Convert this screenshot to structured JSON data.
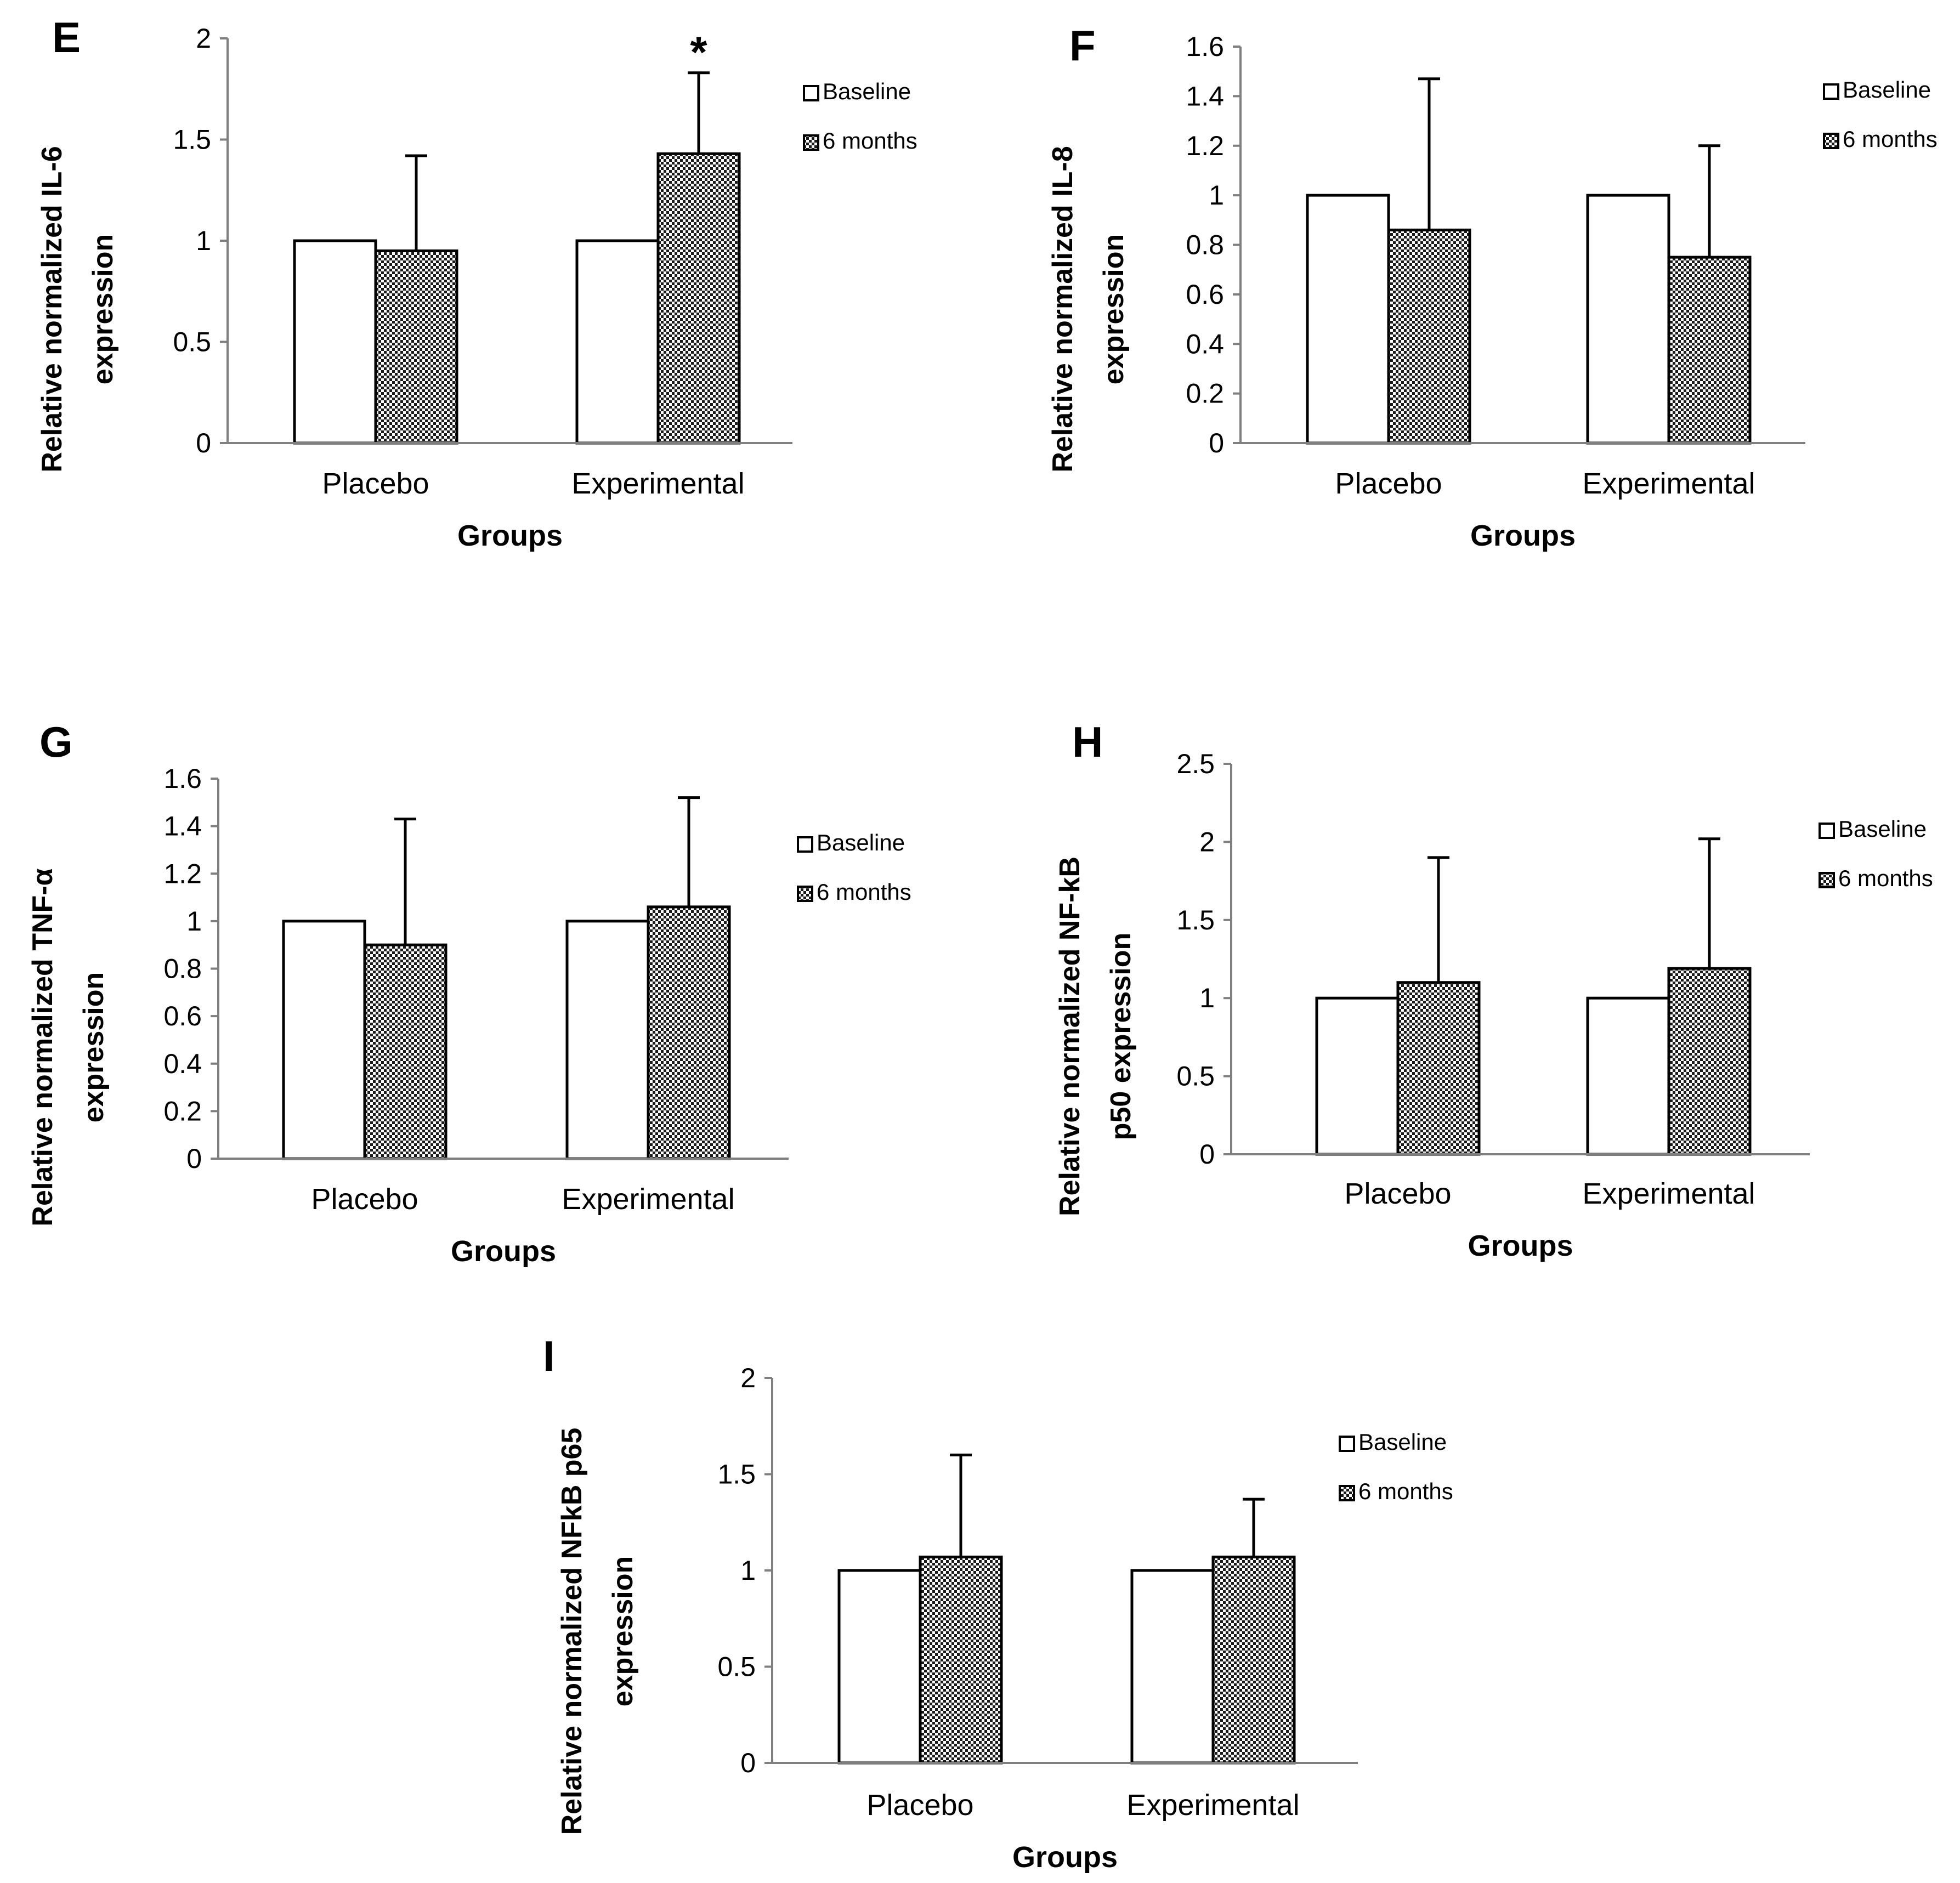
{
  "chart_data": [
    {
      "type": "bar",
      "panel": "E",
      "title": "",
      "xlabel": "Groups",
      "ylabel": [
        "Relative normalized IL-6",
        "expression"
      ],
      "categories": [
        "Placebo",
        "Experimental"
      ],
      "ylim": [
        0,
        2
      ],
      "yticks": [
        0,
        0.5,
        1,
        1.5,
        2
      ],
      "series": [
        {
          "name": "Baseline",
          "values": [
            1.0,
            1.0
          ],
          "errors": [
            null,
            null
          ]
        },
        {
          "name": "6 months",
          "values": [
            0.95,
            1.43
          ],
          "errors": [
            1.42,
            1.83
          ]
        }
      ],
      "annotations": [
        {
          "text": "*",
          "category": "Experimental",
          "series": "6 months"
        }
      ],
      "legend_position": "top-right"
    },
    {
      "type": "bar",
      "panel": "F",
      "title": "",
      "xlabel": "Groups",
      "ylabel": [
        "Relative normalized IL-8",
        "expression"
      ],
      "categories": [
        "Placebo",
        "Experimental"
      ],
      "ylim": [
        0,
        1.6
      ],
      "yticks": [
        0,
        0.2,
        0.4,
        0.6,
        0.8,
        1,
        1.2,
        1.4,
        1.6
      ],
      "series": [
        {
          "name": "Baseline",
          "values": [
            1.0,
            1.0
          ],
          "errors": [
            null,
            null
          ]
        },
        {
          "name": "6 months",
          "values": [
            0.86,
            0.75
          ],
          "errors": [
            1.47,
            1.2
          ]
        }
      ],
      "annotations": [],
      "legend_position": "top-right"
    },
    {
      "type": "bar",
      "panel": "G",
      "title": "",
      "xlabel": "Groups",
      "ylabel": [
        "Relative normalized TNF-α",
        "expression"
      ],
      "categories": [
        "Placebo",
        "Experimental"
      ],
      "ylim": [
        0,
        1.6
      ],
      "yticks": [
        0,
        0.2,
        0.4,
        0.6,
        0.8,
        1,
        1.2,
        1.4,
        1.6
      ],
      "series": [
        {
          "name": "Baseline",
          "values": [
            1.0,
            1.0
          ],
          "errors": [
            null,
            null
          ]
        },
        {
          "name": "6 months",
          "values": [
            0.9,
            1.06
          ],
          "errors": [
            1.43,
            1.52
          ]
        }
      ],
      "annotations": [],
      "legend_position": "top-right"
    },
    {
      "type": "bar",
      "panel": "H",
      "title": "",
      "xlabel": "Groups",
      "ylabel": [
        "Relative normalized NF-kB",
        "p50 expression"
      ],
      "categories": [
        "Placebo",
        "Experimental"
      ],
      "ylim": [
        0,
        2.5
      ],
      "yticks": [
        0,
        0.5,
        1,
        1.5,
        2,
        2.5
      ],
      "series": [
        {
          "name": "Baseline",
          "values": [
            1.0,
            1.0
          ],
          "errors": [
            null,
            null
          ]
        },
        {
          "name": "6 months",
          "values": [
            1.1,
            1.19
          ],
          "errors": [
            1.9,
            2.02
          ]
        }
      ],
      "annotations": [],
      "legend_position": "top-right"
    },
    {
      "type": "bar",
      "panel": "I",
      "title": "",
      "xlabel": "Groups",
      "ylabel": [
        "Relative normalized NFkB p65",
        "expression"
      ],
      "categories": [
        "Placebo",
        "Experimental"
      ],
      "ylim": [
        0,
        2
      ],
      "yticks": [
        0,
        0.5,
        1,
        1.5,
        2
      ],
      "series": [
        {
          "name": "Baseline",
          "values": [
            1.0,
            1.0
          ],
          "errors": [
            null,
            null
          ]
        },
        {
          "name": "6 months",
          "values": [
            1.07,
            1.07
          ],
          "errors": [
            1.6,
            1.37
          ]
        }
      ],
      "annotations": [],
      "legend_position": "top-right"
    }
  ]
}
